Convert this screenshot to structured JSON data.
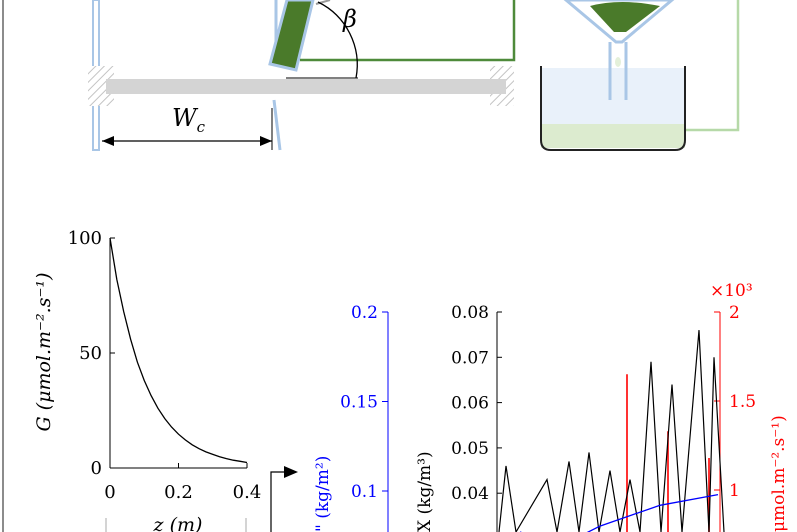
{
  "diagram": {
    "angle_label": "β",
    "width_label_main": "W",
    "width_label_sub": "c",
    "colors": {
      "panel_green": "#4a7a2a",
      "wire_green": "#4e8a3a",
      "light_green_wire": "#b6d9a8",
      "glass_blue": "#a9c6e6",
      "hatch_gray": "#bdbdbd",
      "rod_gray": "#d4d4d4",
      "liquid_green": "#dcebcf"
    }
  },
  "chart_data": [
    {
      "type": "line",
      "ylabel": "G (μmol.m⁻².s⁻¹)",
      "xlabel": "z (m)",
      "xlim": [
        0,
        0.4
      ],
      "ylim": [
        0,
        100
      ],
      "xticks": [
        "0",
        "0.2",
        "0.4"
      ],
      "yticks": [
        "0",
        "50",
        "100"
      ],
      "series": [
        {
          "x": [
            0,
            0.02,
            0.04,
            0.06,
            0.08,
            0.1,
            0.12,
            0.14,
            0.16,
            0.18,
            0.2,
            0.22,
            0.24,
            0.26,
            0.28,
            0.3,
            0.32,
            0.34,
            0.36,
            0.38,
            0.4
          ],
          "y": [
            100,
            82,
            68,
            56,
            46,
            38,
            31.5,
            26,
            21.5,
            17.8,
            14.7,
            12.2,
            10.1,
            8.4,
            7,
            5.9,
            4.9,
            4.1,
            3.4,
            2.9,
            2.4
          ],
          "color": "#000000"
        }
      ]
    },
    {
      "type": "line",
      "left_axis_ticks": [
        "0.1",
        "0.15",
        "0.2"
      ],
      "left_axis_values": [
        0.1,
        0.15,
        0.2
      ],
      "left_axis_color": "#0000ff",
      "left_axis_label_fragment": "\" (kg/m²)",
      "mid_axis_ticks": [
        "0.04",
        "0.05",
        "0.06",
        "0.07",
        "0.08"
      ],
      "mid_axis_values": [
        0.04,
        0.05,
        0.06,
        0.07,
        0.08
      ],
      "mid_axis_label_fragment": "X (kg/m³)",
      "right_axis_ticks": [
        "1",
        "1.5",
        "2"
      ],
      "right_axis_values": [
        1,
        1.5,
        2
      ],
      "right_axis_color": "#ff0000",
      "right_axis_exponent": "×10³",
      "right_axis_label_fragment": "μmol.m⁻².s⁻¹)",
      "black_peaks": [
        0.046,
        0.043,
        0.047,
        0.049,
        0.045,
        0.043,
        0.069,
        0.064,
        0.076,
        0.07
      ],
      "blue_trend": [
        0.086,
        0.098
      ],
      "red_spikes": [
        1.65,
        1.33,
        1.18
      ]
    }
  ]
}
